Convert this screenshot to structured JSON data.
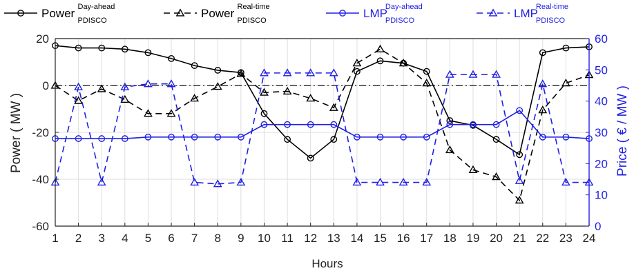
{
  "chart_data": {
    "type": "line",
    "title": "",
    "xlabel": "Hours",
    "ylabel_left": "Power ( MW )",
    "ylabel_right": "Price ( € / MW )",
    "x": [
      1,
      2,
      3,
      4,
      5,
      6,
      7,
      8,
      9,
      10,
      11,
      12,
      13,
      14,
      15,
      16,
      17,
      18,
      19,
      20,
      21,
      22,
      23,
      24
    ],
    "xlim": [
      1,
      24
    ],
    "ylim_left": [
      -60,
      20
    ],
    "ylim_right": [
      0,
      60
    ],
    "yticks_left": [
      -60,
      -40,
      -20,
      0,
      20
    ],
    "yticks_right": [
      0,
      10,
      20,
      30,
      40,
      50,
      60
    ],
    "grid": true,
    "legend_placement": "top",
    "zero_reference_line": true,
    "series": [
      {
        "name": "Power",
        "sup": "Day-ahead",
        "sub": "PDISCO",
        "axis": "left",
        "color": "#000000",
        "dash": "solid",
        "marker": "circle",
        "values": [
          17,
          16,
          16,
          15.5,
          14,
          11.5,
          8.5,
          6.5,
          5.5,
          -12,
          -23,
          -31,
          -23,
          6,
          10.5,
          9.5,
          6,
          -15,
          -17,
          -23,
          -29.5,
          14,
          16,
          16.5
        ]
      },
      {
        "name": "Power",
        "sup": "Real-time",
        "sub": "PDISCO",
        "axis": "left",
        "color": "#000000",
        "dash": "dashed",
        "marker": "triangle",
        "values": [
          0,
          -6.5,
          -1.5,
          -6,
          -12,
          -12,
          -5.5,
          -0.5,
          5,
          -3,
          -2.5,
          -5.5,
          -9.5,
          9.5,
          15.5,
          9.5,
          1,
          -27.5,
          -36,
          -39,
          -49,
          -10.5,
          1,
          4.5
        ]
      },
      {
        "name": "LMP",
        "sup": "Day-ahead",
        "sub": "PDISCO",
        "axis": "right",
        "color": "#1f1fe6",
        "dash": "solid",
        "marker": "circle",
        "values": [
          28,
          28,
          28,
          28,
          28.5,
          28.5,
          28.5,
          28.5,
          28.5,
          32.5,
          32.5,
          32.5,
          32.5,
          28.5,
          28.5,
          28.5,
          28.5,
          32.5,
          32.5,
          32.5,
          37,
          28.5,
          28.5,
          28
        ]
      },
      {
        "name": "LMP",
        "sup": "Real-time",
        "sub": "PDISCO",
        "axis": "right",
        "color": "#1f1fe6",
        "dash": "dashed",
        "marker": "triangle",
        "values": [
          14,
          44.5,
          14,
          44.5,
          45.5,
          45.5,
          14,
          13.5,
          14,
          49,
          49,
          49,
          49,
          14,
          14,
          14,
          14,
          48.5,
          48.5,
          48.5,
          14.5,
          45.5,
          14,
          14
        ]
      }
    ]
  }
}
